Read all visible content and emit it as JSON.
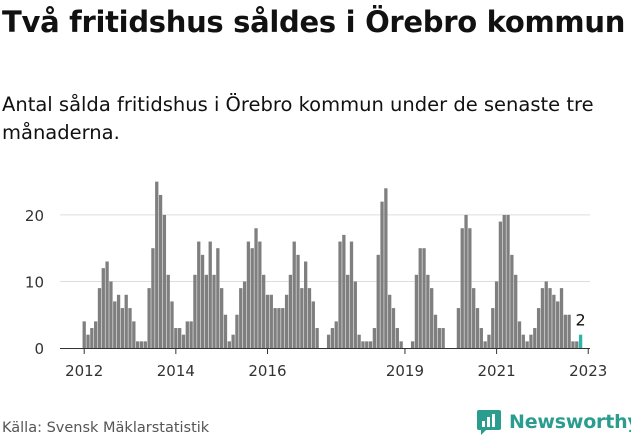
{
  "title": "Två fritidshus såldes i Örebro kommun",
  "subtitle": "Antal sålda fritidshus i Örebro kommun under de senaste tre månaderna.",
  "source": "Källa: Svensk Mäklarstatistik",
  "brand": "Newsworthy",
  "colors": {
    "bars": "#7f7f7f",
    "highlight": "#2ab7a9",
    "brand": "#2a9d8f",
    "grid": "#dddddd"
  },
  "chart_data": {
    "type": "bar",
    "yticks": [
      0,
      10,
      20
    ],
    "ylim": [
      0,
      26
    ],
    "xticks": [
      "2012",
      "2014",
      "2016",
      "2019",
      "2021",
      "2023"
    ],
    "annotation": "2",
    "series": [
      {
        "values": [
          4,
          2,
          3,
          4,
          9,
          12,
          13,
          10,
          7,
          8,
          6,
          8,
          6,
          4,
          1,
          1,
          1,
          9,
          15,
          25,
          23,
          20,
          11,
          7,
          3,
          3,
          2,
          4,
          4,
          11,
          16,
          14,
          11,
          16,
          11,
          15,
          9,
          5,
          1,
          2,
          5,
          9,
          10,
          16,
          15,
          18,
          16,
          11,
          8,
          8,
          6,
          6,
          6,
          8,
          11,
          16,
          14,
          9,
          13,
          9,
          7,
          3,
          0,
          0,
          2,
          3,
          4,
          16,
          17,
          11,
          16,
          10,
          2,
          1,
          1,
          1,
          3,
          14,
          22,
          24,
          8,
          6,
          3,
          1,
          0,
          0,
          1,
          11,
          15,
          15,
          11,
          9,
          5,
          3,
          3,
          0,
          0,
          0,
          6,
          18,
          20,
          18,
          9,
          6,
          3,
          1,
          2,
          6,
          10,
          19,
          20,
          20,
          14,
          11,
          4,
          2,
          1,
          2,
          3,
          6,
          9,
          10,
          9,
          8,
          7,
          9,
          5,
          5,
          1,
          1,
          2
        ],
        "highlight_last": 1
      }
    ]
  }
}
